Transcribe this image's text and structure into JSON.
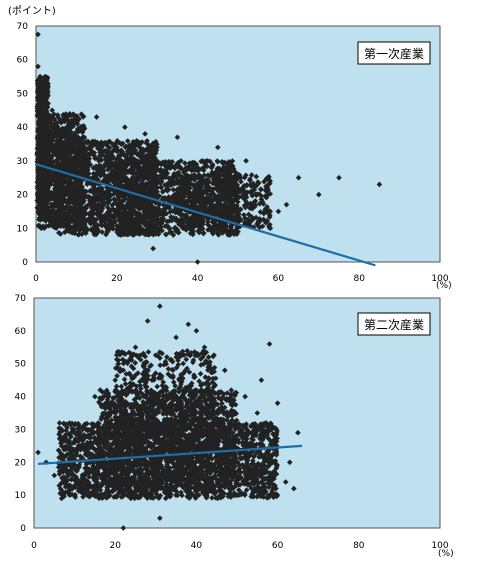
{
  "colors": {
    "plot_bg": "#bfe0ee",
    "point": "#222222",
    "trend": "#1e6eaa",
    "axis": "#555555",
    "label_box_bg": "#ffffff"
  },
  "unit_top": "(ポイント)",
  "chart_data": [
    {
      "type": "scatter",
      "title": "第一次産業",
      "xlabel": "(%)",
      "ylabel": "(ポイント)",
      "xlim": [
        0,
        100
      ],
      "ylim": [
        0,
        70
      ],
      "xticks": [
        "0",
        "20",
        "40",
        "60",
        "80",
        "100"
      ],
      "yticks": [
        "0",
        "10",
        "20",
        "30",
        "40",
        "50",
        "60",
        "70"
      ],
      "grid": false,
      "trendline": [
        [
          0,
          29
        ],
        [
          84,
          -1
        ]
      ],
      "points": [
        [
          0.5,
          67.5
        ],
        [
          0.5,
          58
        ],
        [
          1,
          55
        ],
        [
          1.5,
          51
        ],
        [
          2,
          49
        ],
        [
          3,
          47
        ],
        [
          4,
          45
        ],
        [
          6,
          42
        ],
        [
          8,
          40
        ],
        [
          15,
          43
        ],
        [
          22,
          40
        ],
        [
          27,
          38
        ],
        [
          35,
          37
        ],
        [
          45,
          34
        ],
        [
          52,
          30
        ],
        [
          65,
          25
        ],
        [
          75,
          25
        ],
        [
          70,
          20
        ],
        [
          85,
          23
        ],
        [
          60,
          15
        ],
        [
          62,
          17
        ],
        [
          55,
          12
        ],
        [
          58,
          10
        ],
        [
          48,
          8
        ],
        [
          50,
          9
        ],
        [
          40,
          0
        ],
        [
          29,
          4
        ],
        [
          34,
          8
        ],
        [
          38,
          12
        ],
        [
          20,
          14
        ],
        [
          25,
          18
        ],
        [
          30,
          22
        ],
        [
          10,
          25
        ],
        [
          12,
          30
        ],
        [
          5,
          35
        ],
        [
          2,
          40
        ],
        [
          3,
          22
        ],
        [
          1,
          18
        ],
        [
          8,
          12
        ],
        [
          15,
          10
        ]
      ],
      "clusters": [
        {
          "x": [
            0.3,
            3
          ],
          "y": [
            14,
            55
          ],
          "n": 600
        },
        {
          "x": [
            0.5,
            12
          ],
          "y": [
            10,
            44
          ],
          "n": 900
        },
        {
          "x": [
            5,
            30
          ],
          "y": [
            8,
            36
          ],
          "n": 1300
        },
        {
          "x": [
            20,
            50
          ],
          "y": [
            8,
            30
          ],
          "n": 1100
        },
        {
          "x": [
            35,
            58
          ],
          "y": [
            10,
            26
          ],
          "n": 450
        }
      ]
    },
    {
      "type": "scatter",
      "title": "第二次産業",
      "xlabel": "(%)",
      "ylabel": "",
      "xlim": [
        0,
        100
      ],
      "ylim": [
        0,
        70
      ],
      "xticks": [
        "0",
        "20",
        "40",
        "60",
        "80",
        "100"
      ],
      "yticks": [
        "0",
        "10",
        "20",
        "30",
        "40",
        "50",
        "60",
        "70"
      ],
      "grid": false,
      "trendline": [
        [
          1,
          19.5
        ],
        [
          66,
          25
        ]
      ],
      "points": [
        [
          1,
          23
        ],
        [
          3,
          20
        ],
        [
          5,
          16
        ],
        [
          8,
          13
        ],
        [
          10,
          10
        ],
        [
          22,
          0
        ],
        [
          31,
          3
        ],
        [
          31,
          67.5
        ],
        [
          28,
          63
        ],
        [
          38,
          62
        ],
        [
          35,
          58
        ],
        [
          40,
          60
        ],
        [
          42,
          55
        ],
        [
          43,
          52
        ],
        [
          47,
          48
        ],
        [
          58,
          56
        ],
        [
          56,
          45
        ],
        [
          60,
          38
        ],
        [
          65,
          29
        ],
        [
          63,
          20
        ],
        [
          62,
          14
        ],
        [
          64,
          12
        ],
        [
          25,
          55
        ],
        [
          22,
          48
        ],
        [
          20,
          45
        ],
        [
          15,
          40
        ],
        [
          12,
          30
        ],
        [
          10,
          26
        ],
        [
          52,
          40
        ],
        [
          55,
          35
        ]
      ],
      "clusters": [
        {
          "x": [
            6,
            60
          ],
          "y": [
            9,
            32
          ],
          "n": 2200
        },
        {
          "x": [
            16,
            50
          ],
          "y": [
            12,
            42
          ],
          "n": 1300
        },
        {
          "x": [
            20,
            45
          ],
          "y": [
            28,
            54
          ],
          "n": 500
        }
      ]
    }
  ]
}
